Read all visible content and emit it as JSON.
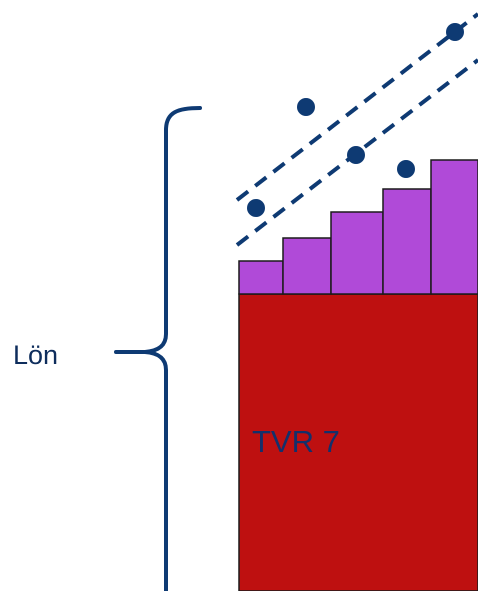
{
  "labels": {
    "salary": "Lön",
    "block": "TVR 7"
  },
  "colors": {
    "block_fill": "#be1010",
    "steps_fill": "#b04ad8",
    "navy": "#0e3a73",
    "outline": "#1a1a1a"
  },
  "steps": {
    "count": 5
  },
  "dots": {
    "count": 5
  }
}
